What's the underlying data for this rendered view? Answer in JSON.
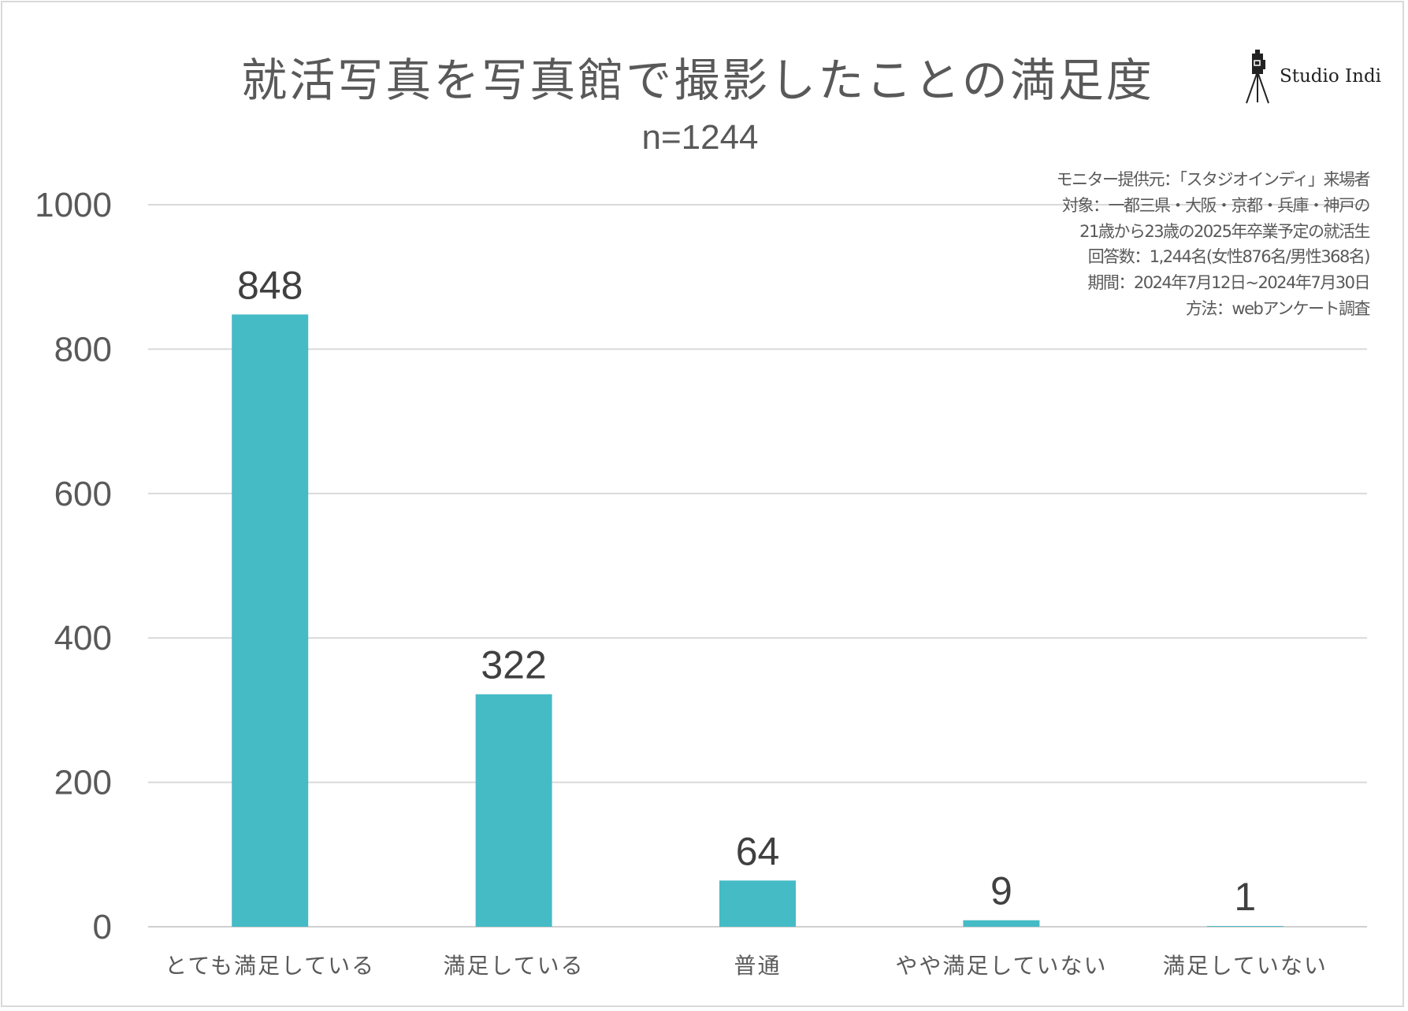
{
  "chart_data": {
    "type": "bar",
    "title": "就活写真を写真館で撮影したことの満足度",
    "subtitle": "n=1244",
    "categories": [
      "とても満足している",
      "満足している",
      "普通",
      "やや満足していない",
      "満足していない"
    ],
    "values": [
      848,
      322,
      64,
      9,
      1
    ],
    "data_labels": [
      "848",
      "322",
      "64",
      "9",
      "1"
    ],
    "ylim": [
      0,
      1000
    ],
    "yticks": [
      0,
      200,
      400,
      600,
      800,
      1000
    ],
    "ytick_labels": [
      "0",
      "200",
      "400",
      "600",
      "800",
      "1000"
    ],
    "grid": true,
    "bar_color": "#45BBC6",
    "notes": [
      "モニター提供元：「スタジオインディ」来場者",
      "対象：一都三県・大阪・京都・兵庫・神戸の",
      "21歳から23歳の2025年卒業予定の就活生",
      "回答数：1,244名(女性876名/男性368名)",
      "期間：2024年7月12日~2024年7月30日",
      "方法：webアンケート調査"
    ]
  },
  "logo": {
    "text": "Studio Indi",
    "icon": "camera-tripod-icon"
  }
}
